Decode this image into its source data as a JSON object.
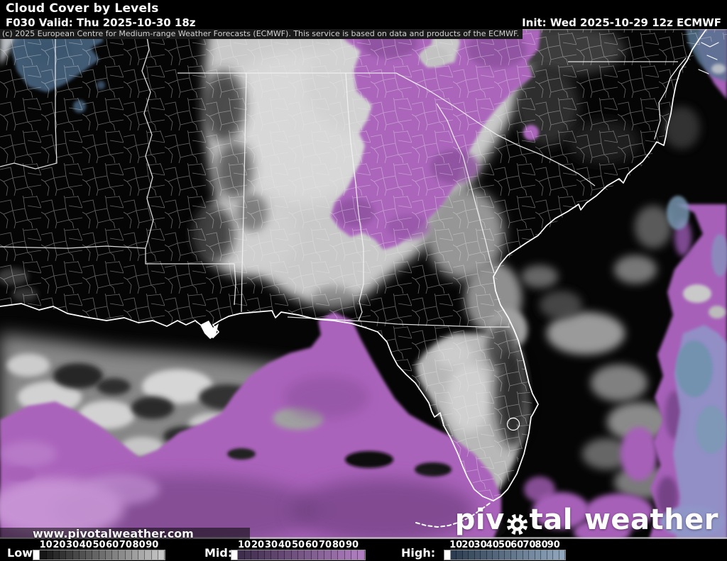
{
  "header": {
    "title": "Cloud Cover by Levels",
    "forecast": "F030 Valid: Thu 2025-10-30 18z",
    "init": "Init: Wed 2025-10-29 12z ECMWF",
    "copyright": "(c) 2025 European Centre for Medium-range Weather Forecasts (ECMWF). This service is based on data and products of the ECMWF."
  },
  "watermark": {
    "url_text": "www.pivotalweather.com",
    "logo_part1": "piv",
    "logo_part2": "tal",
    "logo_part3": "weather",
    "logo_gear_icon": "gear-icon"
  },
  "legend": {
    "groups": [
      {
        "id": "low",
        "label": "Low:",
        "ticks": [
          "10",
          "20",
          "30",
          "40",
          "50",
          "60",
          "70",
          "80",
          "90"
        ],
        "zero_color": "#ffffff",
        "color_start": "#161616",
        "color_end": "#c6c6c6"
      },
      {
        "id": "mid",
        "label": "Mid:",
        "ticks": [
          "10",
          "20",
          "30",
          "40",
          "50",
          "60",
          "70",
          "80",
          "90"
        ],
        "zero_color": "#ffffff",
        "color_start": "#3e2d4c",
        "color_end": "#b07ec0"
      },
      {
        "id": "high",
        "label": "High:",
        "ticks": [
          "10",
          "20",
          "30",
          "40",
          "50",
          "60",
          "70",
          "80",
          "90"
        ],
        "zero_color": "#ffffff",
        "color_start": "#2d3d51",
        "color_end": "#8fa6bd"
      }
    ]
  },
  "map": {
    "palette": {
      "clear_sky": "#050505",
      "low_cloud_gray": "#c9c9c9",
      "mid_cloud_purple": "#ab66bc",
      "mid_cloud_dark_purple": "#7d4890",
      "high_cloud_blue": "#4d6a88",
      "high_cloud_lavender": "#9095c8",
      "boundary_lines": "#ffffff"
    }
  }
}
